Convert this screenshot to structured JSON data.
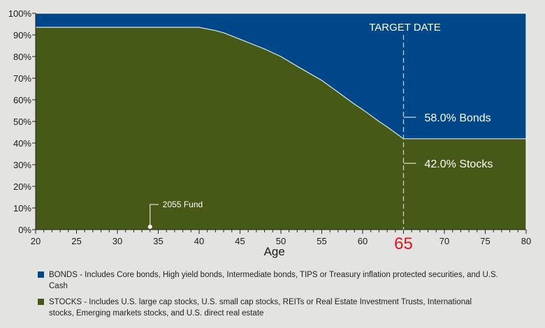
{
  "chart_data": {
    "type": "area",
    "stacked": true,
    "xlabel": "Age",
    "ylabel": "",
    "xlim": [
      20,
      80
    ],
    "ylim": [
      0,
      100
    ],
    "x_ticks": [
      20,
      25,
      30,
      35,
      40,
      45,
      50,
      55,
      60,
      65,
      70,
      75,
      80
    ],
    "x_tick_labels": [
      "20",
      "25",
      "30",
      "35",
      "40",
      "45",
      "50",
      "55",
      "60",
      "65",
      "70",
      "75",
      "80"
    ],
    "y_ticks": [
      0,
      10,
      20,
      30,
      40,
      50,
      60,
      70,
      80,
      90,
      100
    ],
    "y_tick_labels": [
      "0%",
      "10%",
      "20%",
      "30%",
      "40%",
      "50%",
      "60%",
      "70%",
      "80%",
      "90%",
      "100%"
    ],
    "x": [
      20,
      40,
      42,
      43,
      45,
      47,
      48,
      50,
      52,
      55,
      57,
      59,
      60,
      62,
      63,
      65,
      80
    ],
    "series": [
      {
        "name": "STOCKS",
        "color": "#465916",
        "values": [
          93.5,
          93.5,
          92,
          91,
          88,
          85,
          83.5,
          80,
          75.5,
          69,
          63.5,
          58,
          55.5,
          50,
          47.5,
          42,
          42
        ]
      },
      {
        "name": "BONDS",
        "color": "#00478a",
        "values": [
          6.5,
          6.5,
          8,
          9,
          12,
          15,
          16.5,
          20,
          24.5,
          31,
          36.5,
          42,
          44.5,
          50,
          52.5,
          58,
          58
        ]
      }
    ],
    "target": {
      "age": 65,
      "label": "TARGET DATE",
      "highlight_color": "#e0141e"
    },
    "annotations": {
      "bonds": "58.0% Bonds",
      "stocks": "42.0% Stocks",
      "fund": {
        "label": "2055 Fund",
        "age": 34
      }
    },
    "legend": {
      "placement": "bottom",
      "bonds": "BONDS - Includes Core bonds, High yield bonds, Intermediate bonds, TIPS or Treasury inflation protected securities, and U.S. Cash",
      "stocks": "STOCKS - Includes U.S. large cap stocks, U.S. small cap stocks, REITs or Real Estate Investment Trusts, International stocks, Emerging markets stocks, and U.S. direct real estate"
    },
    "grid": false
  }
}
